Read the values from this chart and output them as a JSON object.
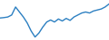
{
  "x": [
    0,
    1,
    2,
    3,
    4,
    5,
    6,
    7,
    8,
    9,
    10,
    11,
    12,
    13,
    14,
    15,
    16,
    17,
    18,
    19,
    20,
    21,
    22,
    23,
    24,
    25,
    26,
    27,
    28
  ],
  "y": [
    3.0,
    3.2,
    3.5,
    4.5,
    8.5,
    6.0,
    3.5,
    0.5,
    -3.5,
    -6.5,
    -4.5,
    -1.5,
    1.0,
    2.0,
    1.0,
    2.5,
    1.5,
    2.8,
    1.8,
    3.5,
    4.5,
    5.5,
    6.0,
    5.5,
    6.5,
    7.0,
    7.5,
    8.5,
    10.0
  ],
  "line_color": "#2b7fc1",
  "linewidth": 1.0,
  "background_color": "#ffffff",
  "ylim": [
    -8,
    12
  ]
}
